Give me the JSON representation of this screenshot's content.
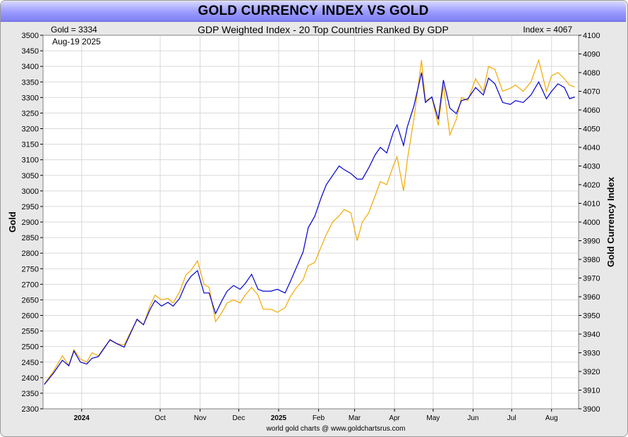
{
  "chart_data": {
    "type": "line",
    "title": "GOLD CURRENCY INDEX VS GOLD",
    "subtitle": "GDP Weighted Index - 20 Top Countries Ranked By GDP",
    "gold_readout": "Gold = 3334",
    "index_readout": "Index = 4067",
    "date_label": "Aug-19  2025",
    "credit": "world gold charts @ www.goldchartsrus.com",
    "ylabel_left": "Gold",
    "ylabel_right": "Gold Currency Index",
    "ylim_left": [
      2300,
      3500
    ],
    "ylim_right": [
      3900,
      4100
    ],
    "yticks_left": [
      2300,
      2350,
      2400,
      2450,
      2500,
      2550,
      2600,
      2650,
      2700,
      2750,
      2800,
      2850,
      2900,
      2950,
      3000,
      3050,
      3100,
      3150,
      3200,
      3250,
      3300,
      3350,
      3400,
      3450,
      3500
    ],
    "yticks_right": [
      3900,
      3910,
      3920,
      3930,
      3940,
      3950,
      3960,
      3970,
      3980,
      3990,
      4000,
      4010,
      4020,
      4030,
      4040,
      4050,
      4060,
      4070,
      4080,
      4090,
      4100
    ],
    "xticks": [
      {
        "label": "2024",
        "date": "2024-08-01",
        "bold": true
      },
      {
        "label": "Oct",
        "date": "2024-10-01",
        "bold": false
      },
      {
        "label": "Nov",
        "date": "2024-11-01",
        "bold": false
      },
      {
        "label": "Dec",
        "date": "2024-12-01",
        "bold": false
      },
      {
        "label": "2025",
        "date": "2025-01-01",
        "bold": true
      },
      {
        "label": "Feb",
        "date": "2025-02-01",
        "bold": false
      },
      {
        "label": "Mar",
        "date": "2025-03-01",
        "bold": false
      },
      {
        "label": "Apr",
        "date": "2025-04-01",
        "bold": false
      },
      {
        "label": "May",
        "date": "2025-05-01",
        "bold": false
      },
      {
        "label": "Jun",
        "date": "2025-06-01",
        "bold": false
      },
      {
        "label": "Jul",
        "date": "2025-07-01",
        "bold": false
      },
      {
        "label": "Aug",
        "date": "2025-08-01",
        "bold": false
      }
    ],
    "xlim": [
      "2024-07-02",
      "2025-08-22"
    ],
    "grid": true,
    "colors": {
      "gold": "#f2a900",
      "index": "#0000cc",
      "grid": "#d9d9d9",
      "title_bar": "#9a9aff"
    },
    "series": [
      {
        "name": "Gold",
        "axis": "left",
        "color": "#f2a900",
        "x": [
          "2024-07-03",
          "2024-07-10",
          "2024-07-17",
          "2024-07-22",
          "2024-07-26",
          "2024-07-31",
          "2024-08-05",
          "2024-08-09",
          "2024-08-14",
          "2024-08-19",
          "2024-08-23",
          "2024-08-28",
          "2024-09-03",
          "2024-09-09",
          "2024-09-13",
          "2024-09-18",
          "2024-09-23",
          "2024-09-27",
          "2024-10-02",
          "2024-10-07",
          "2024-10-11",
          "2024-10-16",
          "2024-10-21",
          "2024-10-25",
          "2024-10-30",
          "2024-11-04",
          "2024-11-08",
          "2024-11-13",
          "2024-11-18",
          "2024-11-22",
          "2024-11-27",
          "2024-12-02",
          "2024-12-06",
          "2024-12-11",
          "2024-12-16",
          "2024-12-20",
          "2024-12-26",
          "2024-12-31",
          "2025-01-06",
          "2025-01-10",
          "2025-01-15",
          "2025-01-20",
          "2025-01-24",
          "2025-01-29",
          "2025-02-03",
          "2025-02-07",
          "2025-02-12",
          "2025-02-17",
          "2025-02-21",
          "2025-02-26",
          "2025-03-03",
          "2025-03-07",
          "2025-03-12",
          "2025-03-17",
          "2025-03-21",
          "2025-03-26",
          "2025-03-31",
          "2025-04-03",
          "2025-04-08",
          "2025-04-11",
          "2025-04-16",
          "2025-04-22",
          "2025-04-25",
          "2025-04-30",
          "2025-05-05",
          "2025-05-09",
          "2025-05-14",
          "2025-05-19",
          "2025-05-23",
          "2025-05-28",
          "2025-06-03",
          "2025-06-09",
          "2025-06-13",
          "2025-06-18",
          "2025-06-24",
          "2025-06-30",
          "2025-07-04",
          "2025-07-10",
          "2025-07-16",
          "2025-07-22",
          "2025-07-28",
          "2025-08-01",
          "2025-08-06",
          "2025-08-11",
          "2025-08-15",
          "2025-08-19"
        ],
        "values": [
          2380,
          2420,
          2470,
          2440,
          2490,
          2460,
          2450,
          2480,
          2470,
          2500,
          2520,
          2510,
          2505,
          2555,
          2585,
          2570,
          2630,
          2665,
          2650,
          2655,
          2640,
          2675,
          2730,
          2745,
          2775,
          2700,
          2690,
          2580,
          2610,
          2640,
          2650,
          2640,
          2665,
          2690,
          2665,
          2620,
          2620,
          2610,
          2625,
          2660,
          2690,
          2715,
          2760,
          2770,
          2820,
          2860,
          2900,
          2920,
          2940,
          2930,
          2840,
          2900,
          2930,
          2985,
          3030,
          3020,
          3080,
          3110,
          3000,
          3100,
          3230,
          3420,
          3290,
          3300,
          3210,
          3340,
          3180,
          3230,
          3300,
          3290,
          3360,
          3320,
          3400,
          3390,
          3320,
          3330,
          3340,
          3320,
          3350,
          3420,
          3320,
          3370,
          3380,
          3360,
          3340,
          3334
        ]
      },
      {
        "name": "Gold Currency Index",
        "axis": "right",
        "color": "#0000cc",
        "x": [
          "2024-07-03",
          "2024-07-10",
          "2024-07-17",
          "2024-07-22",
          "2024-07-26",
          "2024-07-31",
          "2024-08-05",
          "2024-08-09",
          "2024-08-14",
          "2024-08-19",
          "2024-08-23",
          "2024-08-28",
          "2024-09-03",
          "2024-09-09",
          "2024-09-13",
          "2024-09-18",
          "2024-09-23",
          "2024-09-27",
          "2024-10-02",
          "2024-10-07",
          "2024-10-11",
          "2024-10-16",
          "2024-10-21",
          "2024-10-25",
          "2024-10-30",
          "2024-11-04",
          "2024-11-08",
          "2024-11-13",
          "2024-11-18",
          "2024-11-22",
          "2024-11-27",
          "2024-12-02",
          "2024-12-06",
          "2024-12-11",
          "2024-12-16",
          "2024-12-20",
          "2024-12-26",
          "2024-12-31",
          "2025-01-06",
          "2025-01-10",
          "2025-01-15",
          "2025-01-20",
          "2025-01-24",
          "2025-01-29",
          "2025-02-03",
          "2025-02-07",
          "2025-02-12",
          "2025-02-17",
          "2025-02-21",
          "2025-02-26",
          "2025-03-03",
          "2025-03-07",
          "2025-03-12",
          "2025-03-17",
          "2025-03-21",
          "2025-03-26",
          "2025-03-31",
          "2025-04-03",
          "2025-04-08",
          "2025-04-11",
          "2025-04-16",
          "2025-04-22",
          "2025-04-25",
          "2025-04-30",
          "2025-05-05",
          "2025-05-09",
          "2025-05-14",
          "2025-05-19",
          "2025-05-23",
          "2025-05-28",
          "2025-06-03",
          "2025-06-09",
          "2025-06-13",
          "2025-06-18",
          "2025-06-24",
          "2025-06-30",
          "2025-07-04",
          "2025-07-10",
          "2025-07-16",
          "2025-07-22",
          "2025-07-28",
          "2025-08-01",
          "2025-08-06",
          "2025-08-11",
          "2025-08-15",
          "2025-08-19"
        ],
        "values": [
          3913,
          3919,
          3926,
          3923,
          3931,
          3925,
          3924,
          3927,
          3928,
          3933,
          3937,
          3935,
          3933,
          3942,
          3948,
          3945,
          3953,
          3958,
          3955,
          3957,
          3955,
          3959,
          3967,
          3971,
          3974,
          3962,
          3962,
          3951,
          3958,
          3963,
          3966,
          3964,
          3967,
          3972,
          3964,
          3963,
          3963,
          3964,
          3962,
          3968,
          3976,
          3984,
          3997,
          4003,
          4013,
          4020,
          4025,
          4030,
          4028,
          4026,
          4023,
          4023,
          4029,
          4036,
          4040,
          4037,
          4048,
          4052,
          4041,
          4051,
          4062,
          4080,
          4064,
          4067,
          4055,
          4076,
          4061,
          4058,
          4065,
          4066,
          4072,
          4068,
          4077,
          4074,
          4064,
          4063,
          4065,
          4064,
          4068,
          4075,
          4066,
          4070,
          4074,
          4072,
          4066,
          4067
        ]
      }
    ]
  }
}
